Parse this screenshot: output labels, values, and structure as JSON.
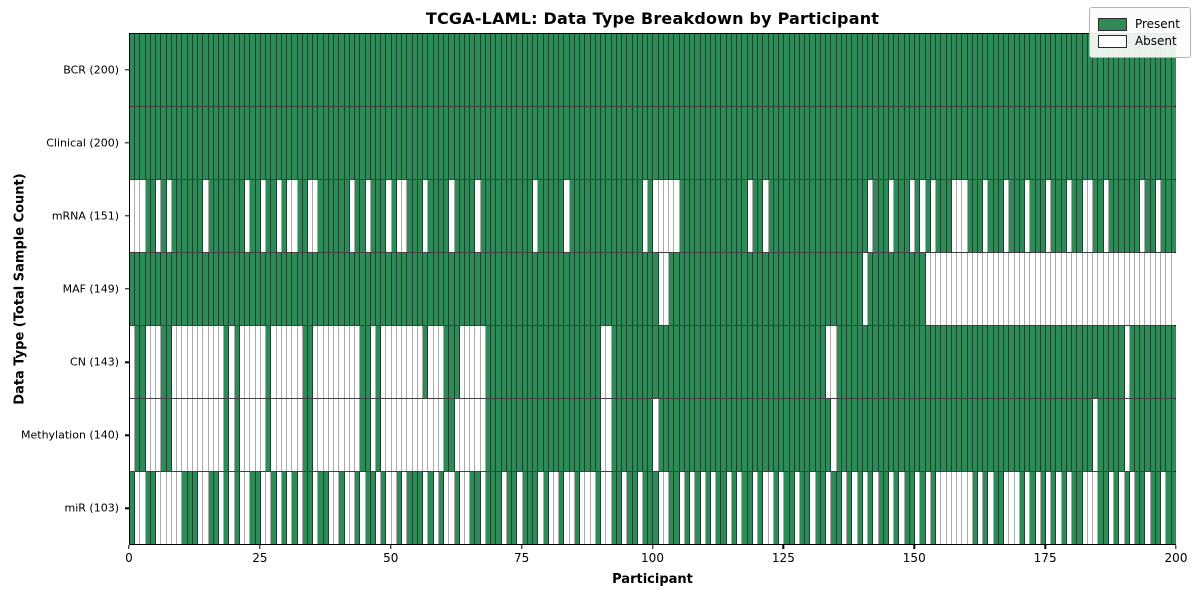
{
  "title": "TCGA-LAML: Data Type Breakdown by Participant",
  "chart_data": {
    "type": "heatmap",
    "title": "TCGA-LAML: Data Type Breakdown by Participant",
    "xlabel": "Participant",
    "ylabel": "Data Type (Total Sample Count)",
    "x_ticks": [
      "0",
      "25",
      "50",
      "75",
      "100",
      "125",
      "150",
      "175",
      "200"
    ],
    "x_range": [
      0,
      200
    ],
    "n_participants": 200,
    "grid": "row-separators",
    "legend": {
      "position": "upper right",
      "entries": [
        {
          "label": "Present",
          "color": "#2e8b57"
        },
        {
          "label": "Absent",
          "color": "#ffffff"
        }
      ]
    },
    "colors": {
      "present": "#2e8b57",
      "absent": "#ffffff",
      "cell_edge_on_green": "rgba(0,0,0,0.50)",
      "cell_edge_on_white": "#ababab"
    },
    "rows": [
      {
        "label": "BCR",
        "count": 200,
        "tick_label": "BCR (200)",
        "absent": []
      },
      {
        "label": "Clinical",
        "count": 200,
        "tick_label": "Clinical (200)",
        "absent": []
      },
      {
        "label": "mRNA",
        "count": 151,
        "tick_label": "mRNA (151)",
        "absent": [
          0,
          1,
          2,
          5,
          7,
          14,
          22,
          25,
          28,
          30,
          31,
          34,
          35,
          42,
          45,
          49,
          51,
          52,
          56,
          61,
          66,
          77,
          83,
          98,
          100,
          101,
          102,
          103,
          104,
          118,
          121,
          141,
          145,
          149,
          151,
          153,
          157,
          158,
          159,
          163,
          167,
          171,
          175,
          179,
          182,
          183,
          186,
          193,
          196
        ]
      },
      {
        "label": "MAF",
        "count": 149,
        "tick_label": "MAF (149)",
        "absent": [
          101,
          102,
          140,
          152,
          153,
          154,
          155,
          156,
          157,
          158,
          159,
          160,
          161,
          162,
          163,
          164,
          165,
          166,
          167,
          168,
          169,
          170,
          171,
          172,
          173,
          174,
          175,
          176,
          177,
          178,
          179,
          180,
          181,
          182,
          183,
          184,
          185,
          186,
          187,
          188,
          189,
          190,
          191,
          192,
          193,
          194,
          195,
          196,
          197,
          198,
          199
        ]
      },
      {
        "label": "CN",
        "count": 143,
        "tick_label": "CN (143)",
        "absent": [
          0,
          3,
          4,
          5,
          8,
          9,
          10,
          11,
          12,
          13,
          14,
          15,
          16,
          17,
          19,
          21,
          22,
          23,
          24,
          25,
          27,
          28,
          29,
          30,
          31,
          32,
          35,
          36,
          37,
          38,
          39,
          40,
          41,
          42,
          43,
          46,
          48,
          49,
          50,
          51,
          52,
          53,
          54,
          55,
          57,
          58,
          59,
          63,
          64,
          65,
          66,
          67,
          90,
          91,
          133,
          134,
          190
        ]
      },
      {
        "label": "Methylation",
        "count": 140,
        "tick_label": "Methylation (140)",
        "absent": [
          0,
          3,
          4,
          5,
          8,
          9,
          10,
          11,
          12,
          13,
          14,
          15,
          16,
          17,
          19,
          21,
          22,
          23,
          24,
          25,
          27,
          28,
          29,
          30,
          31,
          32,
          35,
          36,
          37,
          38,
          39,
          40,
          41,
          42,
          43,
          46,
          48,
          49,
          50,
          51,
          52,
          53,
          54,
          55,
          56,
          57,
          58,
          59,
          62,
          63,
          64,
          65,
          66,
          67,
          90,
          91,
          100,
          134,
          184,
          190
        ]
      },
      {
        "label": "miR",
        "count": 103,
        "tick_label": "miR (103)",
        "absent": [
          1,
          2,
          5,
          6,
          7,
          8,
          9,
          13,
          14,
          17,
          19,
          21,
          22,
          25,
          26,
          28,
          30,
          32,
          35,
          38,
          39,
          41,
          42,
          44,
          47,
          49,
          50,
          52,
          56,
          58,
          60,
          61,
          63,
          64,
          67,
          71,
          74,
          78,
          80,
          81,
          83,
          84,
          86,
          87,
          88,
          90,
          91,
          94,
          97,
          101,
          102,
          105,
          107,
          109,
          111,
          114,
          116,
          119,
          121,
          122,
          124,
          127,
          130,
          133,
          136,
          138,
          140,
          142,
          145,
          147,
          150,
          152,
          154,
          155,
          156,
          157,
          158,
          159,
          160,
          162,
          164,
          167,
          168,
          169,
          171,
          173,
          175,
          177,
          179,
          182,
          183,
          184,
          187,
          189,
          191,
          194,
          197
        ]
      }
    ]
  }
}
